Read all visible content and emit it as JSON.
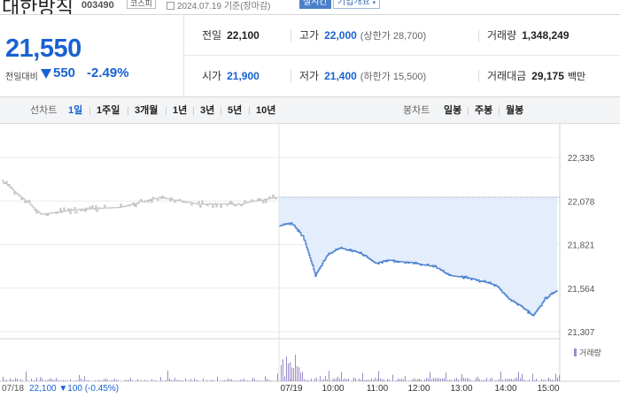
{
  "stock": {
    "name": "대한방직",
    "code": "003490",
    "market": "코스피",
    "date_note": "2024.07.19 기준(장마감)",
    "realtime_label": "실시간",
    "overview_label": "기업개요"
  },
  "price": {
    "current": "21,550",
    "change_label": "전일대비",
    "change": "550",
    "change_pct": "-2.49%"
  },
  "stats": {
    "prev_close": {
      "label": "전일",
      "value": "22,100"
    },
    "high": {
      "label": "고가",
      "value": "22,000",
      "sub": "(상한가 28,700)"
    },
    "volume": {
      "label": "거래량",
      "value": "1,348,249"
    },
    "open": {
      "label": "시가",
      "value": "21,900"
    },
    "low": {
      "label": "저가",
      "value": "21,400",
      "sub": "(하한가 15,500)"
    },
    "turnover": {
      "label": "거래대금",
      "value": "29,175",
      "unit": "백만"
    }
  },
  "tabs": {
    "line_label": "선차트",
    "line_periods": [
      "1일",
      "1주일",
      "3개월",
      "1년",
      "3년",
      "5년",
      "10년"
    ],
    "active_period": "1일",
    "candle_label": "봉차트",
    "candle_periods": [
      "일봉",
      "주봉",
      "월봉"
    ]
  },
  "footer": {
    "prev_date": "07/18",
    "prev_info": "22,100 ▼100 (-0.45%)"
  },
  "colors": {
    "blue": "#1861d2",
    "line_today": "#4a80d0",
    "fill_today": "#e3edfb",
    "line_prev": "#c4c4c4",
    "volume": "#9b8ac8"
  },
  "chart_data": {
    "type": "line",
    "ylim": [
      21307,
      22335
    ],
    "yticks": [
      22335,
      22078,
      21821,
      21564,
      21307
    ],
    "reference_line": 22100,
    "xticks": [
      "07/19",
      "10:00",
      "11:00",
      "12:00",
      "13:00",
      "14:00",
      "15:00"
    ],
    "volume_label": "거래량",
    "series": [
      {
        "x": [
          "07/18 09:00",
          "07/18 10:00",
          "07/18 11:00",
          "07/18 12:00",
          "07/18 13:00",
          "07/18 14:00",
          "07/18 15:00",
          "07/18 15:30"
        ],
        "values": [
          22200,
          22000,
          22030,
          22040,
          22100,
          22060,
          22060,
          22100
        ]
      },
      {
        "x": [
          "09:00",
          "09:05",
          "09:15",
          "09:30",
          "09:45",
          "10:00",
          "10:15",
          "10:30",
          "11:00",
          "11:30",
          "12:00",
          "12:30",
          "13:00",
          "13:30",
          "13:45",
          "14:00",
          "14:15",
          "14:30",
          "14:45",
          "14:50",
          "15:00",
          "15:10",
          "15:20",
          "15:30"
        ],
        "values": [
          21930,
          21950,
          21870,
          21640,
          21760,
          21800,
          21790,
          21760,
          21710,
          21730,
          21720,
          21715,
          21700,
          21690,
          21640,
          21630,
          21620,
          21600,
          21580,
          21500,
          21460,
          21400,
          21500,
          21550
        ]
      }
    ]
  }
}
